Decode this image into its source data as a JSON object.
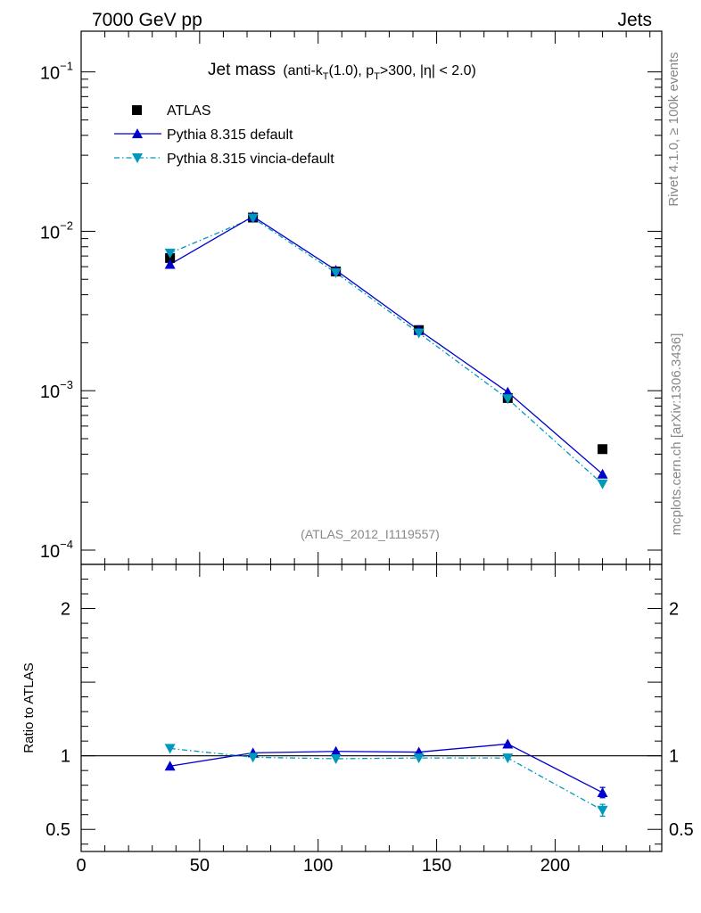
{
  "header": {
    "left": "7000 GeV pp",
    "right": "Jets",
    "side_top": "Rivet 4.1.0, ≥ 100k events",
    "side_bottom": "mcplots.cern.ch [arXiv:1306.3436]"
  },
  "title": {
    "main": "Jet mass",
    "sub_prefix": "(anti-k",
    "sub_T1": "T",
    "sub_mid": "(1.0), p",
    "sub_T2": "T",
    "sub_suffix": ">300, |η| < 2.0)"
  },
  "watermark": "(ATLAS_2012_I1119557)",
  "colors": {
    "atlas": "#000000",
    "pythia_default": "#0000cc",
    "pythia_vincia": "#0099bb"
  },
  "chart_data": [
    {
      "type": "line",
      "yscale": "log",
      "xlim": [
        0,
        245
      ],
      "ylim": [
        0.0001,
        0.18
      ],
      "legend_position": "top-left",
      "y_ticks": [
        {
          "value": 0.1,
          "label_base": "10",
          "label_exp": "−1"
        },
        {
          "value": 0.01,
          "label_base": "10",
          "label_exp": "−2"
        },
        {
          "value": 0.001,
          "label_base": "10",
          "label_exp": "−3"
        },
        {
          "value": 0.0001,
          "label_base": "10",
          "label_exp": "−4"
        }
      ],
      "series": [
        {
          "name": "ATLAS",
          "marker": "square",
          "x": [
            37.5,
            72.5,
            107.5,
            142.5,
            180,
            220
          ],
          "values": [
            0.0068,
            0.0122,
            0.0056,
            0.0024,
            0.0009,
            0.00043
          ]
        },
        {
          "name": "Pythia 8.315 default",
          "marker": "triangle-up",
          "line": "solid",
          "x": [
            37.5,
            72.5,
            107.5,
            142.5,
            180,
            220
          ],
          "values": [
            0.0062,
            0.0124,
            0.0057,
            0.0024,
            0.00098,
            0.0003
          ]
        },
        {
          "name": "Pythia 8.315 vincia-default",
          "marker": "triangle-down",
          "line": "dashdot",
          "x": [
            37.5,
            72.5,
            107.5,
            142.5,
            180,
            220
          ],
          "values": [
            0.0073,
            0.0121,
            0.0055,
            0.0023,
            0.00089,
            0.00026
          ]
        }
      ]
    },
    {
      "type": "line",
      "ylabel": "Ratio to ATLAS",
      "xlim": [
        0,
        245
      ],
      "ylim": [
        0.35,
        2.3
      ],
      "reference_line": 1,
      "x_ticks": [
        0,
        50,
        100,
        150,
        200
      ],
      "y_ticks": [
        {
          "value": 0.5,
          "label": "0.5"
        },
        {
          "value": 1,
          "label": "1"
        },
        {
          "value": 2,
          "label": "2"
        }
      ],
      "series": [
        {
          "name": "Pythia 8.315 default",
          "x": [
            37.5,
            72.5,
            107.5,
            142.5,
            180,
            220
          ],
          "values": [
            0.93,
            1.02,
            1.03,
            1.025,
            1.08,
            0.75
          ],
          "errors": [
            0,
            0,
            0,
            0,
            0,
            0.035
          ]
        },
        {
          "name": "Pythia 8.315 vincia-default",
          "x": [
            37.5,
            72.5,
            107.5,
            142.5,
            180,
            220
          ],
          "values": [
            1.05,
            0.99,
            0.98,
            0.985,
            0.985,
            0.63
          ],
          "errors": [
            0,
            0,
            0,
            0,
            0,
            0.04
          ]
        }
      ]
    }
  ]
}
